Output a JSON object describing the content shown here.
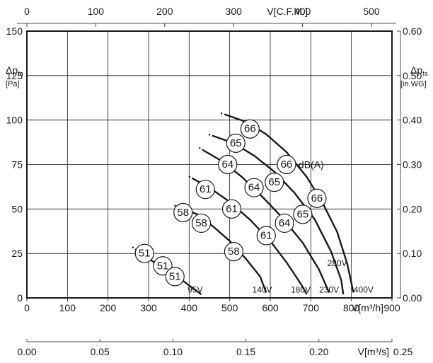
{
  "chart_data": {
    "type": "line",
    "title": "",
    "xlabel": "V[m³/h]",
    "ylabel": "Δpfa [Pa]",
    "xlim": [
      0,
      900
    ],
    "ylim": [
      0,
      150
    ],
    "grid": true,
    "bottom_axis": {
      "ticks": [
        "0",
        "100",
        "200",
        "300",
        "400",
        "500",
        "600",
        "700",
        "800",
        "900"
      ],
      "unit": "V[m³/h]"
    },
    "bottom_axis2": {
      "ticks": [
        "0.00",
        "0.05",
        "0.10",
        "0.15",
        "0.20",
        "0.25"
      ],
      "unit": "V[m³/s]"
    },
    "top_axis": {
      "ticks": [
        "0",
        "100",
        "200",
        "300",
        "400",
        "500"
      ],
      "unit": "V[C.F.M.]"
    },
    "left_axis": {
      "ticks": [
        "0",
        "25",
        "50",
        "75",
        "100",
        "125",
        "150"
      ],
      "symbol_main": "Δp",
      "symbol_sub": "fa",
      "unit": "[Pa]"
    },
    "right_axis": {
      "ticks": [
        "0.00",
        "0.10",
        "0.20",
        "0.30",
        "0.40",
        "0.50",
        "0.60"
      ],
      "symbol_main": "Δp",
      "symbol_sub": "fa",
      "unit": "[in.WG]"
    },
    "dba_label": "dB(A)",
    "series": [
      {
        "name": "95V",
        "points": [
          [
            270,
            27
          ],
          [
            320,
            19
          ],
          [
            365,
            13
          ],
          [
            400,
            7
          ],
          [
            430,
            2
          ]
        ],
        "badges": [
          {
            "v": 290,
            "p": 25,
            "label": "51"
          },
          {
            "v": 335,
            "p": 18,
            "label": "51"
          },
          {
            "v": 365,
            "p": 12,
            "label": "51"
          }
        ]
      },
      {
        "name": "140V",
        "points": [
          [
            375,
            51
          ],
          [
            420,
            47
          ],
          [
            460,
            40
          ],
          [
            500,
            32
          ],
          [
            540,
            22
          ],
          [
            575,
            12
          ],
          [
            590,
            3
          ]
        ],
        "badges": [
          {
            "v": 385,
            "p": 48,
            "label": "58"
          },
          {
            "v": 430,
            "p": 42,
            "label": "58"
          },
          {
            "v": 510,
            "p": 26,
            "label": "58"
          }
        ]
      },
      {
        "name": "180V",
        "points": [
          [
            410,
            67
          ],
          [
            450,
            62
          ],
          [
            500,
            54
          ],
          [
            550,
            44
          ],
          [
            600,
            32
          ],
          [
            640,
            20
          ],
          [
            675,
            8
          ],
          [
            690,
            2
          ]
        ],
        "badges": [
          {
            "v": 440,
            "p": 61,
            "label": "61"
          },
          {
            "v": 505,
            "p": 50,
            "label": "61"
          },
          {
            "v": 590,
            "p": 35,
            "label": "61"
          }
        ]
      },
      {
        "name": "230V",
        "points": [
          [
            435,
            83
          ],
          [
            480,
            77
          ],
          [
            530,
            68
          ],
          [
            580,
            57
          ],
          [
            630,
            45
          ],
          [
            680,
            31
          ],
          [
            720,
            16
          ],
          [
            745,
            3
          ]
        ],
        "badges": [
          {
            "v": 495,
            "p": 75,
            "label": "64"
          },
          {
            "v": 560,
            "p": 62,
            "label": "64"
          },
          {
            "v": 635,
            "p": 42,
            "label": "64"
          }
        ]
      },
      {
        "name": "280V",
        "points": [
          [
            460,
            91
          ],
          [
            510,
            87
          ],
          [
            560,
            80
          ],
          [
            610,
            71
          ],
          [
            660,
            59
          ],
          [
            710,
            44
          ],
          [
            750,
            26
          ],
          [
            775,
            10
          ],
          [
            780,
            2
          ]
        ],
        "badges": [
          {
            "v": 515,
            "p": 87,
            "label": "65"
          },
          {
            "v": 610,
            "p": 65,
            "label": "65"
          },
          {
            "v": 680,
            "p": 47,
            "label": "65"
          }
        ]
      },
      {
        "name": "400V",
        "points": [
          [
            490,
            103
          ],
          [
            540,
            99
          ],
          [
            590,
            92
          ],
          [
            640,
            82
          ],
          [
            690,
            68
          ],
          [
            730,
            53
          ],
          [
            765,
            37
          ],
          [
            790,
            19
          ],
          [
            805,
            3
          ]
        ],
        "badges": [
          {
            "v": 550,
            "p": 95,
            "label": "66"
          },
          {
            "v": 640,
            "p": 75,
            "label": "66"
          },
          {
            "v": 715,
            "p": 56,
            "label": "66"
          }
        ]
      }
    ],
    "voltage_labels": [
      {
        "text": "95V",
        "v": 415,
        "p": 3
      },
      {
        "text": "140V",
        "v": 580,
        "p": 3
      },
      {
        "text": "180V",
        "v": 675,
        "p": 3
      },
      {
        "text": "230V",
        "v": 745,
        "p": 3
      },
      {
        "text": "280V",
        "v": 765,
        "p": 18
      },
      {
        "text": "400V",
        "v": 830,
        "p": 3
      }
    ]
  }
}
